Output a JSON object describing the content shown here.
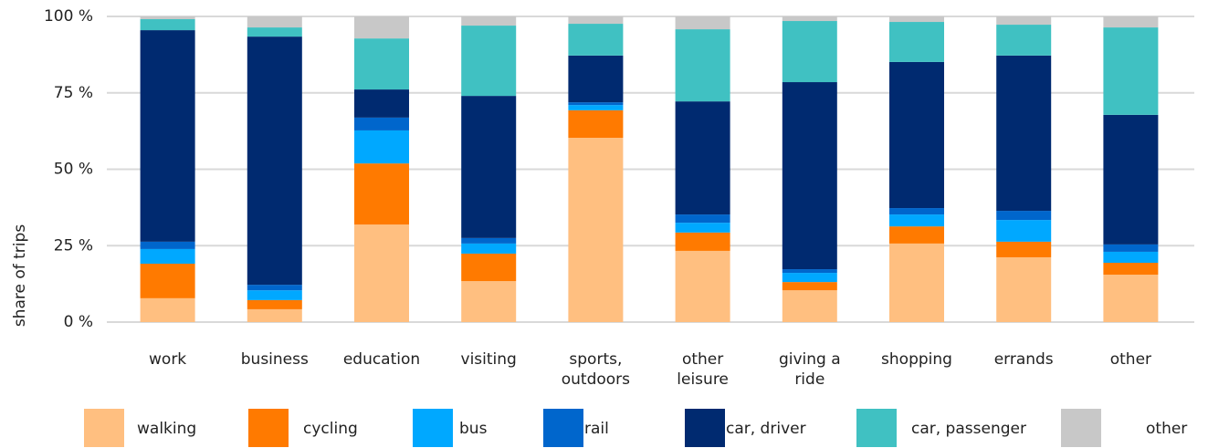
{
  "chart_data": {
    "type": "stacked_bar",
    "ylabel": "share of trips",
    "categories": [
      "work",
      "business",
      "education",
      "visiting",
      "sports, outdoors",
      "other leisure",
      "giving a ride",
      "shopping",
      "errands",
      "other"
    ],
    "series": [
      {
        "name": "walking",
        "color": "#ffbf80",
        "values": [
          7.8,
          4.2,
          31.9,
          13.4,
          60.3,
          23.3,
          10.4,
          25.7,
          21.2,
          15.5
        ]
      },
      {
        "name": "cycling",
        "color": "#ff7a00",
        "values": [
          11.3,
          3.0,
          20.0,
          9.0,
          9.0,
          6.0,
          2.7,
          5.6,
          5.1,
          3.9
        ]
      },
      {
        "name": "bus",
        "color": "#00a8ff",
        "values": [
          4.8,
          3.2,
          10.8,
          3.3,
          1.7,
          3.2,
          3.0,
          3.9,
          7.1,
          3.6
        ]
      },
      {
        "name": "rail",
        "color": "#0066cc",
        "values": [
          2.4,
          1.8,
          4.2,
          1.8,
          0.9,
          2.7,
          1.2,
          2.1,
          3.0,
          2.4
        ]
      },
      {
        "name": "car, driver",
        "color": "#002a70",
        "values": [
          69.2,
          81.2,
          9.2,
          46.5,
          15.3,
          37.0,
          61.2,
          47.8,
          50.8,
          42.4
        ]
      },
      {
        "name": "car, passenger",
        "color": "#40c1c2",
        "values": [
          3.6,
          3.0,
          16.7,
          23.0,
          10.4,
          23.6,
          20.0,
          13.1,
          10.1,
          28.6
        ]
      },
      {
        "name": "other",
        "color": "#c8c8c8",
        "values": [
          0.9,
          3.6,
          7.2,
          3.0,
          2.4,
          4.2,
          1.5,
          1.8,
          2.7,
          3.6
        ]
      }
    ],
    "ylim": [
      0,
      100
    ],
    "yticks": [
      {
        "value": 0,
        "label": "0 %"
      },
      {
        "value": 25,
        "label": "25 %"
      },
      {
        "value": 50,
        "label": "50 %"
      },
      {
        "value": 75,
        "label": "75 %"
      },
      {
        "value": 100,
        "label": "100 %"
      }
    ],
    "grid": true,
    "legend": "bottom"
  }
}
